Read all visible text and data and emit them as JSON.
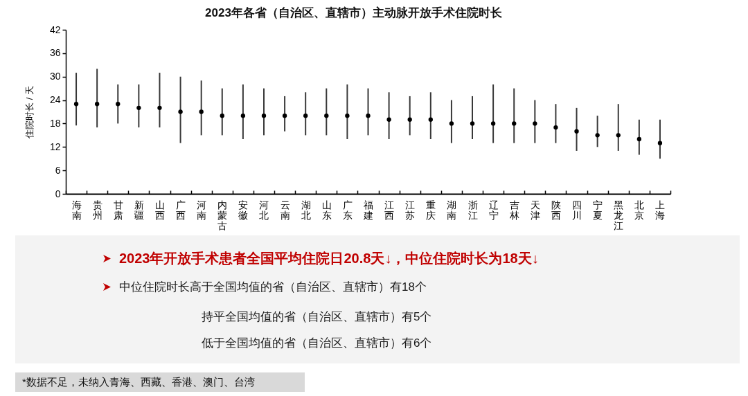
{
  "chart_data": {
    "type": "scatter",
    "title": "2023年各省（自治区、直辖市）主动脉开放手术住院时长",
    "ylabel": "住院时长 / 天",
    "categories": [
      "海南",
      "贵州",
      "甘肃",
      "新疆",
      "山西",
      "广西",
      "河南",
      "内蒙古",
      "安徽",
      "河北",
      "云南",
      "湖北",
      "山东",
      "广东",
      "福建",
      "江西",
      "江苏",
      "重庆",
      "湖南",
      "浙江",
      "辽宁",
      "吉林",
      "天津",
      "陕西",
      "四川",
      "宁夏",
      "黑龙江",
      "北京",
      "上海"
    ],
    "values": [
      23,
      23,
      23,
      22,
      22,
      21,
      21,
      20,
      20,
      20,
      20,
      20,
      20,
      20,
      20,
      19,
      19,
      19,
      18,
      18,
      18,
      18,
      18,
      17,
      16,
      15,
      15,
      14,
      13
    ],
    "errors": [
      [
        17.5,
        31
      ],
      [
        17,
        32
      ],
      [
        18,
        28
      ],
      [
        17,
        28
      ],
      [
        17,
        31
      ],
      [
        13,
        30
      ],
      [
        15,
        29
      ],
      [
        15,
        27
      ],
      [
        14,
        28
      ],
      [
        15,
        27
      ],
      [
        16,
        25
      ],
      [
        15,
        26
      ],
      [
        15,
        27
      ],
      [
        14,
        28
      ],
      [
        15,
        27
      ],
      [
        14,
        26
      ],
      [
        15,
        25
      ],
      [
        14,
        26
      ],
      [
        13,
        24
      ],
      [
        14,
        25
      ],
      [
        13,
        28
      ],
      [
        13,
        27
      ],
      [
        13,
        24
      ],
      [
        13,
        23
      ],
      [
        11,
        22
      ],
      [
        12,
        20
      ],
      [
        11,
        23
      ],
      [
        10,
        19
      ],
      [
        9,
        19
      ]
    ],
    "color": "#000000",
    "marker": "circle",
    "ylim": [
      0,
      42
    ],
    "yticks": [
      0,
      6,
      12,
      18,
      24,
      30,
      36,
      42
    ],
    "annotations": [
      "2023年开放手术患者全国平均住院日20.8天↓，中位住院时长为18天↓",
      "中位住院时长高于全国均值的省（自治区、直辖市）有18个",
      "持平全国均值的省（自治区、直辖市）有5个",
      "低于全国均值的省（自治区、直辖市）有6个",
      "*数据不足，未纳入青海、西藏、香港、澳门、台湾"
    ]
  }
}
